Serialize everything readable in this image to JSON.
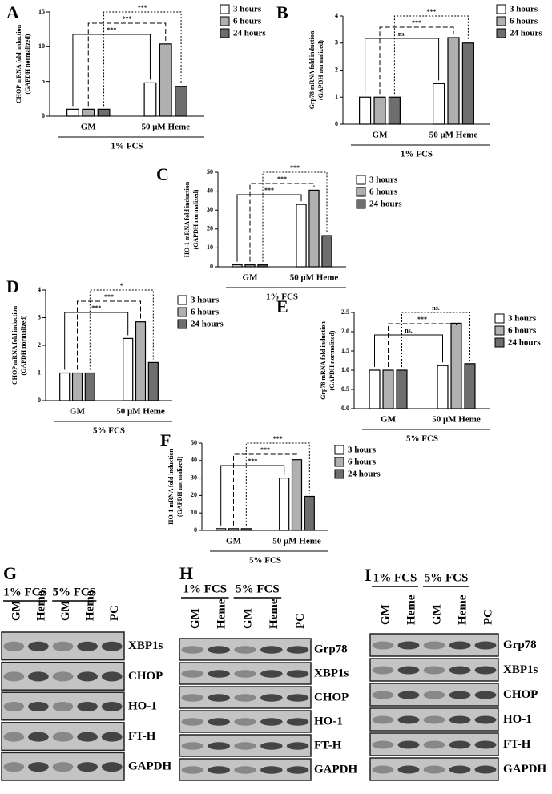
{
  "chart_data": [
    {
      "type": "bar",
      "panel": "A",
      "y_label": [
        "CHOP mRNA fold induction",
        "(GAPDH normalized)"
      ],
      "categories": [
        "GM",
        "50 μM Heme"
      ],
      "x_group_label": "1% FCS",
      "series": [
        {
          "name": "3 hours",
          "color": "#ffffff",
          "values": [
            1,
            4.8
          ]
        },
        {
          "name": "6 hours",
          "color": "#b0b0b0",
          "values": [
            1,
            10.4
          ]
        },
        {
          "name": "24 hours",
          "color": "#6e6e6e",
          "values": [
            1,
            4.3
          ]
        }
      ],
      "ylim": [
        0,
        15
      ],
      "yticks": [
        0,
        5,
        10,
        15
      ],
      "annotations": [
        "***",
        "***",
        "***"
      ]
    },
    {
      "type": "bar",
      "panel": "B",
      "y_label": [
        "Grp78 mRNA fold induction",
        "(GAPDH normalized)"
      ],
      "categories": [
        "GM",
        "50 μM Heme"
      ],
      "x_group_label": "1% FCS",
      "series": [
        {
          "name": "3 hours",
          "color": "#ffffff",
          "values": [
            1,
            1.5
          ]
        },
        {
          "name": "6 hours",
          "color": "#b0b0b0",
          "values": [
            1,
            3.2
          ]
        },
        {
          "name": "24 hours",
          "color": "#6e6e6e",
          "values": [
            1,
            3.0
          ]
        }
      ],
      "ylim": [
        0,
        4
      ],
      "yticks": [
        0,
        1,
        2,
        3,
        4
      ],
      "annotations": [
        "ns.",
        "***",
        "***"
      ]
    },
    {
      "type": "bar",
      "panel": "C",
      "y_label": [
        "HO-1 mRNA fold induction",
        "(GAPDH normalized)"
      ],
      "categories": [
        "GM",
        "50 μM Heme"
      ],
      "x_group_label": "1% FCS",
      "series": [
        {
          "name": "3 hours",
          "color": "#ffffff",
          "values": [
            1,
            33
          ]
        },
        {
          "name": "6 hours",
          "color": "#b0b0b0",
          "values": [
            1,
            40.5
          ]
        },
        {
          "name": "24 hours",
          "color": "#6e6e6e",
          "values": [
            1,
            16.5
          ]
        }
      ],
      "ylim": [
        0,
        50
      ],
      "yticks": [
        0,
        10,
        20,
        30,
        40,
        50
      ],
      "annotations": [
        "***",
        "***",
        "***"
      ]
    },
    {
      "type": "bar",
      "panel": "D",
      "y_label": [
        "CHOP mRNA fold induction",
        "(GAPDH normalized)"
      ],
      "categories": [
        "GM",
        "50 μM Heme"
      ],
      "x_group_label": "5% FCS",
      "series": [
        {
          "name": "3 hours",
          "color": "#ffffff",
          "values": [
            1,
            2.25
          ]
        },
        {
          "name": "6 hours",
          "color": "#b0b0b0",
          "values": [
            1,
            2.85
          ]
        },
        {
          "name": "24 hours",
          "color": "#6e6e6e",
          "values": [
            1,
            1.38
          ]
        }
      ],
      "ylim": [
        0,
        4
      ],
      "yticks": [
        0,
        1,
        2,
        3,
        4
      ],
      "annotations": [
        "***",
        "***",
        "*"
      ]
    },
    {
      "type": "bar",
      "panel": "E",
      "y_label": [
        "Grp78 mRNA fold induction",
        "(GAPDH normalized)"
      ],
      "categories": [
        "GM",
        "50 μM Heme"
      ],
      "x_group_label": "5% FCS",
      "series": [
        {
          "name": "3 hours",
          "color": "#ffffff",
          "values": [
            1,
            1.12
          ]
        },
        {
          "name": "6 hours",
          "color": "#b0b0b0",
          "values": [
            1,
            2.22
          ]
        },
        {
          "name": "24 hours",
          "color": "#6e6e6e",
          "values": [
            1,
            1.17
          ]
        }
      ],
      "ylim": [
        0,
        2.5
      ],
      "yticks": [
        {
          "value": 0,
          "label": "0.0"
        },
        0.5,
        {
          "value": 1,
          "label": "1.0"
        },
        1.5,
        {
          "value": 2,
          "label": "2.0"
        },
        2.5
      ],
      "annotations": [
        "ns.",
        "***",
        "ns."
      ]
    },
    {
      "type": "bar",
      "panel": "F",
      "y_label": [
        "HO-1 mRNA fold induction",
        "(GAPDH normalized)"
      ],
      "categories": [
        "GM",
        "50 μM Heme"
      ],
      "x_group_label": "5% FCS",
      "series": [
        {
          "name": "3 hours",
          "color": "#ffffff",
          "values": [
            1,
            30
          ]
        },
        {
          "name": "6 hours",
          "color": "#b0b0b0",
          "values": [
            1,
            40.5
          ]
        },
        {
          "name": "24 hours",
          "color": "#6e6e6e",
          "values": [
            1,
            19.5
          ]
        }
      ],
      "ylim": [
        0,
        50
      ],
      "yticks": [
        0,
        10,
        20,
        30,
        40,
        50
      ],
      "annotations": [
        "***",
        "***",
        "***"
      ]
    }
  ],
  "blots": [
    {
      "panel": "G",
      "groups": [
        "1% FCS",
        "5% FCS"
      ],
      "lanes": [
        "GM",
        "Heme",
        "GM",
        "Heme",
        "PC"
      ],
      "rows": [
        "XBP1s",
        "CHOP",
        "HO-1",
        "FT-H",
        "GAPDH"
      ]
    },
    {
      "panel": "H",
      "groups": [
        "1% FCS",
        "5% FCS"
      ],
      "lanes": [
        "GM",
        "Heme",
        "GM",
        "Heme",
        "PC"
      ],
      "rows": [
        "Grp78",
        "XBP1s",
        "CHOP",
        "HO-1",
        "FT-H",
        "GAPDH"
      ]
    },
    {
      "panel": "I",
      "groups": [
        "1% FCS",
        "5% FCS"
      ],
      "lanes": [
        "GM",
        "Heme",
        "GM",
        "Heme",
        "PC"
      ],
      "rows": [
        "Grp78",
        "XBP1s",
        "CHOP",
        "HO-1",
        "FT-H",
        "GAPDH"
      ]
    }
  ]
}
